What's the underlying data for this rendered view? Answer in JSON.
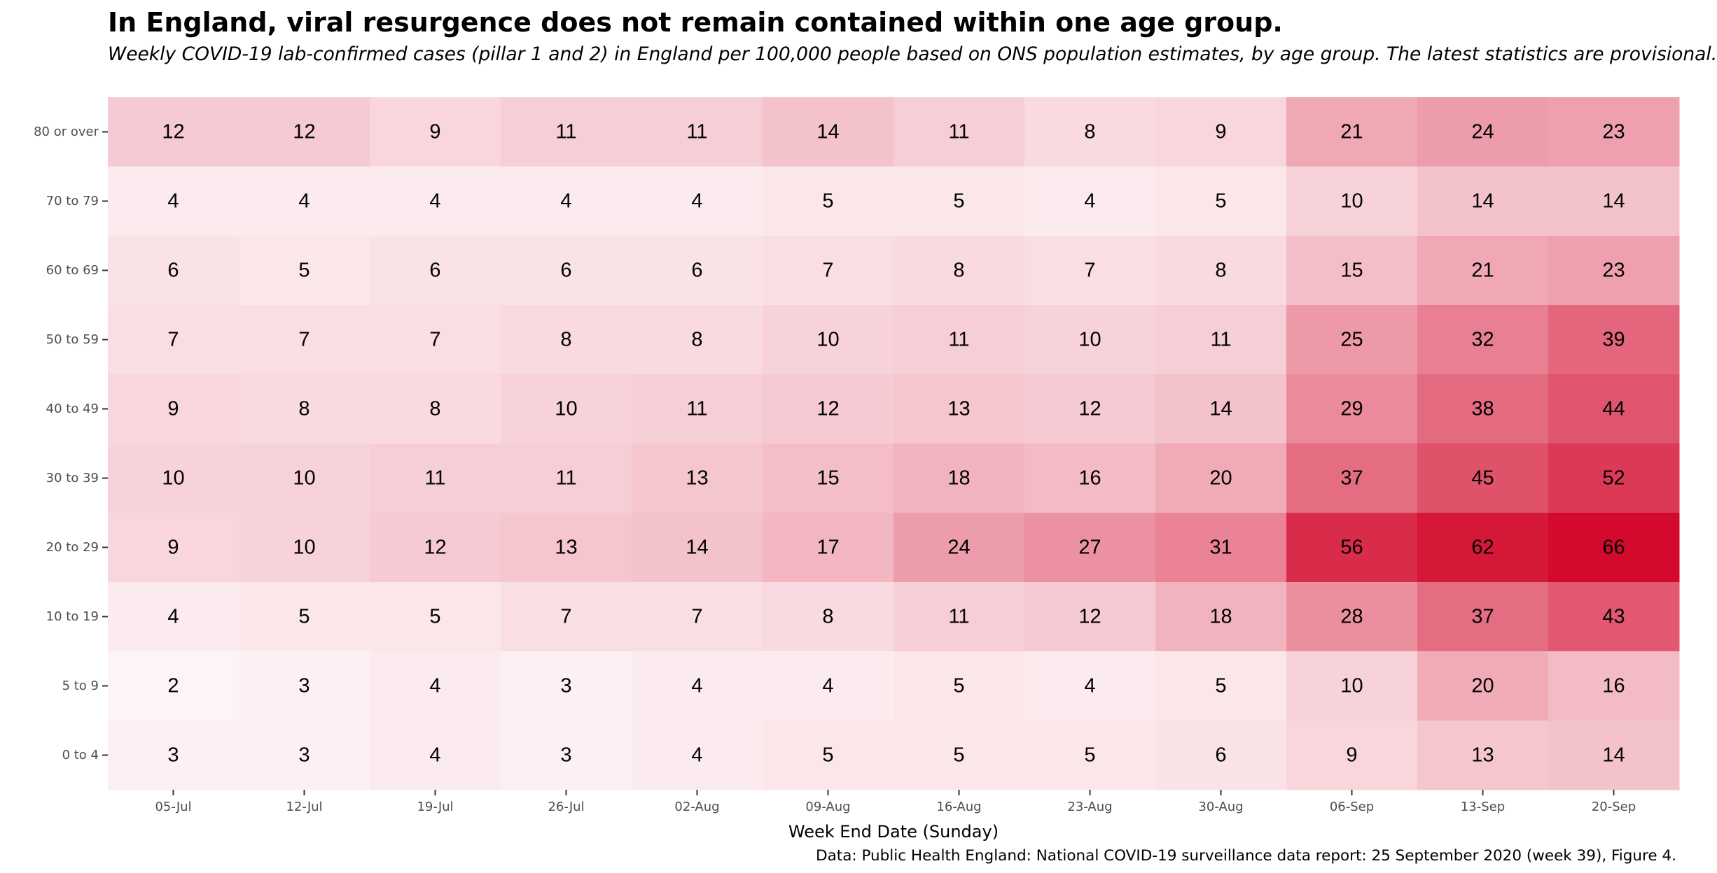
{
  "chart_data": {
    "type": "heatmap",
    "title": "In England, viral resurgence does not remain contained within one age group.",
    "subtitle": "Weekly COVID-19 lab-confirmed cases (pillar 1 and 2) in England per 100,000 people based on ONS population estimates, by age group. The latest statistics are provisional.",
    "xlabel": "Week End Date (Sunday)",
    "ylabel": "",
    "caption": "Data: Public Health England: National COVID-19 surveillance data report: 25 September 2020 (week 39), Figure 4.",
    "x": [
      "05-Jul",
      "12-Jul",
      "19-Jul",
      "26-Jul",
      "02-Aug",
      "09-Aug",
      "16-Aug",
      "23-Aug",
      "30-Aug",
      "06-Sep",
      "13-Sep",
      "20-Sep"
    ],
    "y": [
      "80 or over",
      "70 to 79",
      "60 to 69",
      "50 to 59",
      "40 to 49",
      "30 to 39",
      "20 to 29",
      "10 to 19",
      "5 to 9",
      "0 to 4"
    ],
    "values": [
      [
        12,
        12,
        9,
        11,
        11,
        14,
        11,
        8,
        9,
        21,
        24,
        23
      ],
      [
        4,
        4,
        4,
        4,
        4,
        5,
        5,
        4,
        5,
        10,
        14,
        14
      ],
      [
        6,
        5,
        6,
        6,
        6,
        7,
        8,
        7,
        8,
        15,
        21,
        23
      ],
      [
        7,
        7,
        7,
        8,
        8,
        10,
        11,
        10,
        11,
        25,
        32,
        39
      ],
      [
        9,
        8,
        8,
        10,
        11,
        12,
        13,
        12,
        14,
        29,
        38,
        44
      ],
      [
        10,
        10,
        11,
        11,
        13,
        15,
        18,
        16,
        20,
        37,
        45,
        52
      ],
      [
        9,
        10,
        12,
        13,
        14,
        17,
        24,
        27,
        31,
        56,
        62,
        66
      ],
      [
        4,
        5,
        5,
        7,
        7,
        8,
        11,
        12,
        18,
        28,
        37,
        43
      ],
      [
        2,
        3,
        4,
        3,
        4,
        4,
        5,
        4,
        5,
        10,
        20,
        16
      ],
      [
        3,
        3,
        4,
        3,
        4,
        5,
        5,
        5,
        6,
        9,
        13,
        14
      ]
    ],
    "color_low": "#ffffff",
    "color_high": "#d30a2d",
    "legend": "none",
    "grid": false
  }
}
